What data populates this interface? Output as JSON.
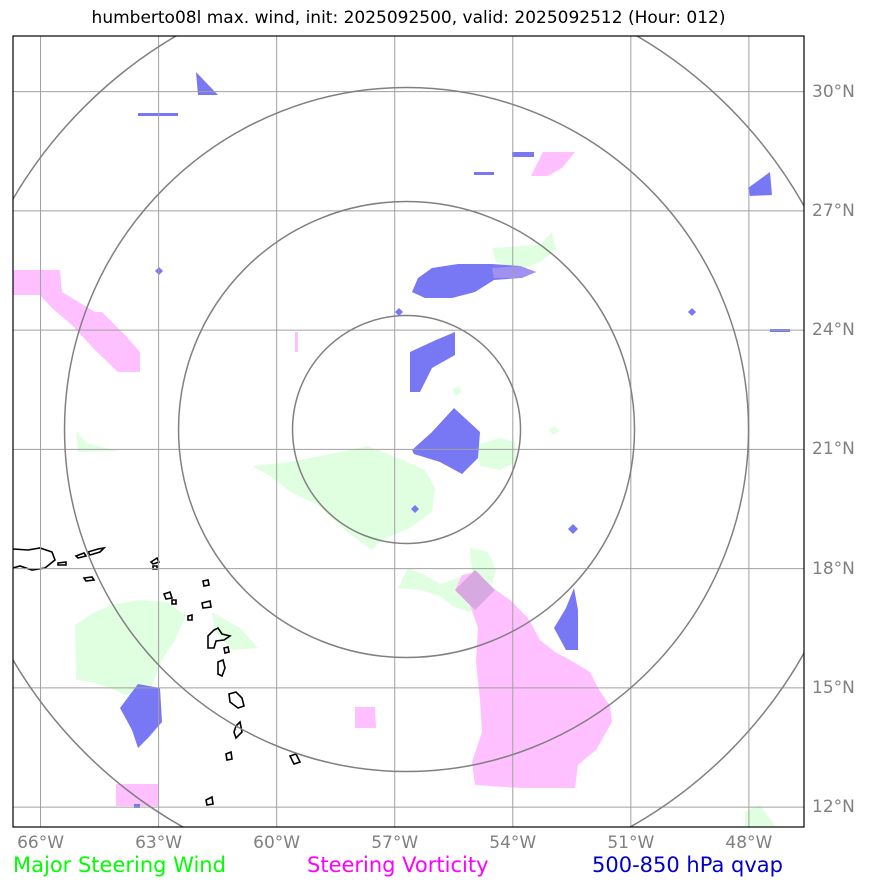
{
  "title": "humberto08l max. wind, init: 2025092500, valid: 2025092512 (Hour: 012)",
  "map": {
    "lon_ticks": [
      "66°W",
      "63°W",
      "60°W",
      "57°W",
      "54°W",
      "51°W",
      "48°W"
    ],
    "lat_ticks": [
      "30°N",
      "27°N",
      "24°N",
      "21°N",
      "18°N",
      "15°N",
      "12°N"
    ],
    "extent": {
      "lon_min": -66.7,
      "lon_max": -46.6,
      "lat_min": 11.5,
      "lat_max": 31.4
    },
    "storm_center": {
      "lon": -56.7,
      "lat": 21.5
    },
    "range_rings": 4,
    "frame_color": "#000000",
    "grid_color": "#a0a0a0",
    "ring_color": "#808080"
  },
  "layers": {
    "wind": {
      "name": "Major Steering Wind",
      "color": "#00ff00",
      "fill": "#e0ffe0"
    },
    "vorticity": {
      "name": "Steering Vorticity",
      "color": "#ff00ff",
      "fill": "#ffc0ff"
    },
    "qvap": {
      "name": "500-850 hPa qvap",
      "color": "#0000cc",
      "fill": "#7878f5"
    }
  }
}
